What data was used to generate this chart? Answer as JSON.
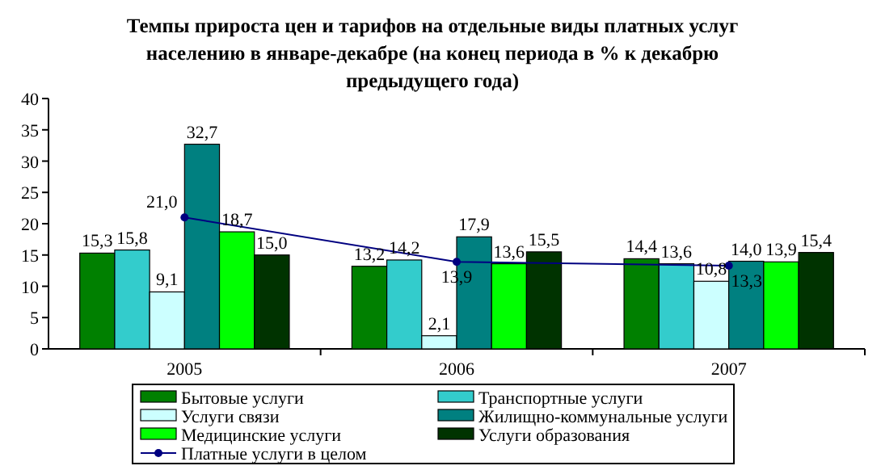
{
  "chart_data": {
    "type": "bar",
    "title": "Темпы прироста цен и тарифов на отдельные виды платных услуг населению  в январе-декабре (на конец периода в % к декабрю предыдущего года)",
    "categories": [
      "2005",
      "2006",
      "2007"
    ],
    "series": [
      {
        "name": "Бытовые услуги",
        "color": "#008000",
        "values": [
          15.3,
          13.2,
          14.4
        ],
        "value_labels": [
          "15,3",
          "13,2",
          "14,4"
        ]
      },
      {
        "name": "Транспортные услуги",
        "color": "#33cccc",
        "values": [
          15.8,
          14.2,
          13.6
        ],
        "value_labels": [
          "15,8",
          "14,2",
          "13,6"
        ]
      },
      {
        "name": "Услуги связи",
        "color": "#ccffff",
        "values": [
          9.1,
          2.1,
          10.8
        ],
        "value_labels": [
          "9,1",
          "2,1",
          "10,8"
        ]
      },
      {
        "name": "Жилищно-коммунальные услуги",
        "color": "#008080",
        "values": [
          32.7,
          17.9,
          14.0
        ],
        "value_labels": [
          "32,7",
          "17,9",
          "14,0"
        ]
      },
      {
        "name": "Медицинские услуги",
        "color": "#00ff00",
        "values": [
          18.7,
          13.6,
          13.9
        ],
        "value_labels": [
          "18,7",
          "13,6",
          "13,9"
        ]
      },
      {
        "name": "Услуги образования",
        "color": "#003300",
        "values": [
          15.0,
          15.5,
          15.4
        ],
        "value_labels": [
          "15,0",
          "15,5",
          "15,4"
        ]
      },
      {
        "name": "Платные услуги в целом",
        "color": "#000080",
        "type": "line",
        "values": [
          21.0,
          13.9,
          13.3
        ],
        "value_labels": [
          "21,0",
          "13,9",
          "13,3"
        ]
      }
    ],
    "ylim": [
      0,
      40
    ],
    "yticks": [
      0,
      5,
      10,
      15,
      20,
      25,
      30,
      35,
      40
    ],
    "legend": "bottom",
    "marker": "circle"
  }
}
